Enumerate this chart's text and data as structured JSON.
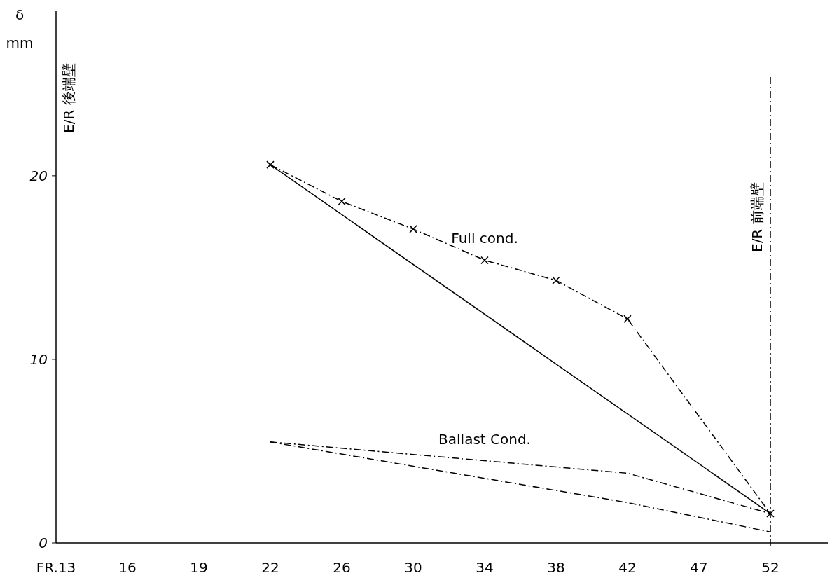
{
  "chart_data": {
    "type": "line",
    "ylabel": "δ mm",
    "categories": [
      "FR.13",
      "16",
      "19",
      "22",
      "26",
      "30",
      "34",
      "38",
      "42",
      "47",
      "52"
    ],
    "series": [
      {
        "name": "Full cond.",
        "color": "#000000",
        "marker": "cross",
        "line_style": "dashed",
        "values": [
          null,
          null,
          null,
          20.6,
          18.6,
          17.1,
          15.4,
          14.3,
          12.2,
          null,
          1.6
        ]
      },
      {
        "color": "#000000",
        "line_style": "solid",
        "values": [
          null,
          null,
          null,
          20.6,
          null,
          null,
          null,
          null,
          null,
          null,
          1.6
        ]
      },
      {
        "name": "Ballast Cond.",
        "color": "#000000",
        "line_style": "dashed",
        "values": [
          null,
          null,
          null,
          5.5,
          null,
          null,
          null,
          null,
          3.8,
          null,
          1.6
        ]
      },
      {
        "color": "#000000",
        "line_style": "dashed",
        "values": [
          null,
          null,
          null,
          5.5,
          null,
          null,
          null,
          null,
          2.2,
          null,
          0.6
        ]
      }
    ],
    "ylim": [
      0,
      29
    ],
    "yticks": [
      0,
      10,
      20
    ],
    "grid": false,
    "annotations": [
      "E/R 後端壁"
    ],
    "ref_lines": [
      {
        "axis": "x",
        "value": "52",
        "label": "E/R 前端壁",
        "line_style": "dashed"
      }
    ]
  }
}
